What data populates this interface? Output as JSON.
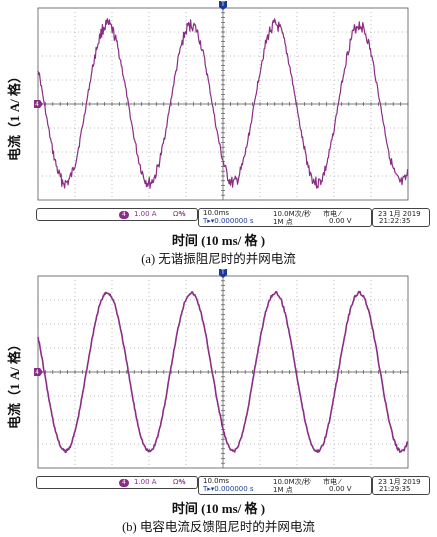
{
  "panels": [
    {
      "id": "a",
      "y_label": "电流（1 A/ 格）",
      "x_label": "时间 (10 ms/ 格 )",
      "caption": "(a) 无谐振阻尼时的并网电流",
      "trace_color": "#8a2d86",
      "trigger_marker": "T",
      "channel_marker": "4",
      "status": {
        "channel": "4",
        "scale": "1.00 A",
        "coupling": "Ω℁",
        "timebase": "10.0ms",
        "trigger_pos": "T▸▾0.000000 s",
        "sample_rate": "10.0M次/秒",
        "record": "1M 点",
        "source": "市电 ⁄",
        "level": "0.00 V",
        "date": "23 1月 2019",
        "time": "21:22:35"
      }
    },
    {
      "id": "b",
      "y_label": "电流（1 A/ 格）",
      "x_label": "时间 (10 ms/ 格 )",
      "caption": "(b) 电容电流反馈阻尼时的并网电流",
      "trace_color": "#8a2d86",
      "trigger_marker": "T",
      "channel_marker": "4",
      "status": {
        "channel": "4",
        "scale": "1.00 A",
        "coupling": "Ω℁",
        "timebase": "10.0ms",
        "trigger_pos": "T▸▾0.000000 s",
        "sample_rate": "10.0M次/秒",
        "record": "1M 点",
        "source": "市电 ⁄",
        "level": "0.00 V",
        "date": "23 1月 2019",
        "time": "21:29:35"
      }
    }
  ]
}
